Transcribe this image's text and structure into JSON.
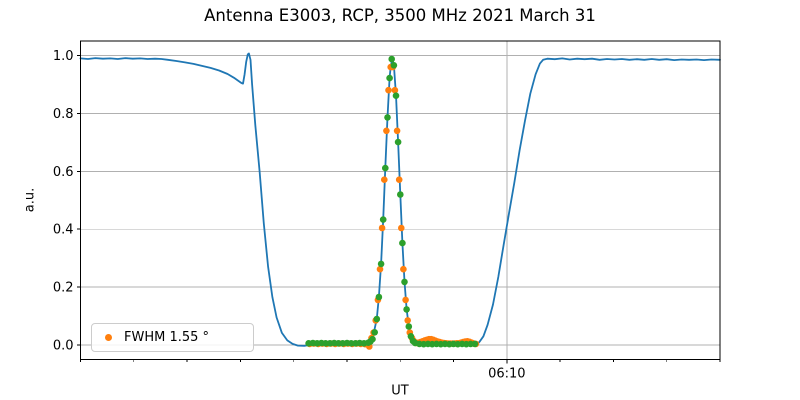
{
  "title": "Antenna E3003, RCP, 3500 MHz 2021 March 31",
  "legend": {
    "label": "FWHM 1.55 °"
  },
  "colors": {
    "line": "#1f77b4",
    "scan": "#ff7f0e",
    "fit": "#2ca02c"
  },
  "axes": {
    "ylabel": "a.u.",
    "xlabel": "UT",
    "ytick_labels": [
      "0.0",
      "0.2",
      "0.4",
      "0.6",
      "0.8",
      "1.0"
    ],
    "ytick_values": [
      0.0,
      0.2,
      0.4,
      0.6,
      0.8,
      1.0
    ],
    "x_major_tick": {
      "minutes": 40,
      "label": "06:10"
    },
    "x_minor_step_minutes": 5,
    "grid_color": "#b0b0b0",
    "frame_color": "#000000"
  },
  "chart_data": {
    "type": "line",
    "title": "Antenna E3003, RCP, 3500 MHz 2021 March 31",
    "xlabel": "UT",
    "ylabel": "a.u.",
    "x_unit": "minutes after 05:30 UT",
    "xlim": [
      0,
      60
    ],
    "ylim": [
      -0.05,
      1.05
    ],
    "grid": true,
    "legend_position": "lower left",
    "series": [
      {
        "name": "drift-scan-line",
        "type": "line",
        "color": "#1f77b4",
        "points": [
          [
            0,
            0.99
          ],
          [
            0.7,
            0.988
          ],
          [
            1.4,
            0.991
          ],
          [
            2.1,
            0.989
          ],
          [
            2.8,
            0.99
          ],
          [
            3.5,
            0.988
          ],
          [
            4.2,
            0.991
          ],
          [
            4.9,
            0.989
          ],
          [
            5.6,
            0.99
          ],
          [
            6.3,
            0.988
          ],
          [
            7,
            0.989
          ],
          [
            7.6,
            0.988
          ],
          [
            8.2,
            0.985
          ],
          [
            9,
            0.981
          ],
          [
            9.8,
            0.976
          ],
          [
            10.6,
            0.971
          ],
          [
            11.4,
            0.964
          ],
          [
            12.2,
            0.957
          ],
          [
            13,
            0.948
          ],
          [
            13.8,
            0.936
          ],
          [
            14.4,
            0.923
          ],
          [
            14.8,
            0.913
          ],
          [
            15.1,
            0.905
          ],
          [
            15.25,
            0.903
          ],
          [
            15.4,
            0.935
          ],
          [
            15.55,
            0.978
          ],
          [
            15.7,
            1.004
          ],
          [
            15.8,
            1.007
          ],
          [
            15.95,
            0.985
          ],
          [
            16.1,
            0.9
          ],
          [
            16.4,
            0.76
          ],
          [
            16.8,
            0.6
          ],
          [
            17.2,
            0.42
          ],
          [
            17.6,
            0.27
          ],
          [
            18,
            0.165
          ],
          [
            18.4,
            0.095
          ],
          [
            18.9,
            0.042
          ],
          [
            19.4,
            0.016
          ],
          [
            19.9,
            0.004
          ],
          [
            20.4,
            -0.002
          ],
          [
            21,
            -0.003
          ],
          [
            21.6,
            0.001
          ],
          [
            22.4,
            0.002
          ],
          [
            23.2,
            0.003
          ],
          [
            24,
            0.002
          ],
          [
            25,
            0.003
          ],
          [
            26,
            0.003
          ],
          [
            26.6,
            0.004
          ],
          [
            27,
            0.006
          ],
          [
            27.4,
            0.021
          ],
          [
            27.8,
            0.091
          ],
          [
            28,
            0.167
          ],
          [
            28.2,
            0.281
          ],
          [
            28.4,
            0.434
          ],
          [
            28.6,
            0.612
          ],
          [
            28.8,
            0.787
          ],
          [
            29,
            0.923
          ],
          [
            29.1,
            0.962
          ],
          [
            29.25,
            0.99
          ],
          [
            29.4,
            0.966
          ],
          [
            29.6,
            0.862
          ],
          [
            29.8,
            0.702
          ],
          [
            30,
            0.521
          ],
          [
            30.2,
            0.353
          ],
          [
            30.4,
            0.219
          ],
          [
            30.6,
            0.124
          ],
          [
            30.8,
            0.065
          ],
          [
            31,
            0.031
          ],
          [
            31.3,
            0.011
          ],
          [
            31.6,
            0.005
          ],
          [
            32.2,
            0.004
          ],
          [
            33,
            0.005
          ],
          [
            33.8,
            0.004
          ],
          [
            34.6,
            0.004
          ],
          [
            35.4,
            0.005
          ],
          [
            36.2,
            0.004
          ],
          [
            37,
            0.005
          ],
          [
            37.4,
            0.009
          ],
          [
            37.8,
            0.03
          ],
          [
            38.2,
            0.07
          ],
          [
            38.7,
            0.14
          ],
          [
            39.2,
            0.235
          ],
          [
            39.7,
            0.345
          ],
          [
            40.2,
            0.455
          ],
          [
            40.7,
            0.56
          ],
          [
            41.2,
            0.672
          ],
          [
            41.7,
            0.775
          ],
          [
            42.2,
            0.868
          ],
          [
            42.7,
            0.935
          ],
          [
            43.1,
            0.972
          ],
          [
            43.4,
            0.985
          ],
          [
            43.8,
            0.989
          ],
          [
            44.5,
            0.987
          ],
          [
            45.2,
            0.99
          ],
          [
            45.9,
            0.986
          ],
          [
            46.6,
            0.989
          ],
          [
            47.3,
            0.987
          ],
          [
            48,
            0.989
          ],
          [
            48.7,
            0.985
          ],
          [
            49.4,
            0.988
          ],
          [
            50.1,
            0.986
          ],
          [
            50.8,
            0.988
          ],
          [
            51.5,
            0.985
          ],
          [
            52.2,
            0.987
          ],
          [
            52.9,
            0.985
          ],
          [
            53.6,
            0.988
          ],
          [
            54.3,
            0.985
          ],
          [
            55,
            0.987
          ],
          [
            55.7,
            0.984
          ],
          [
            56.4,
            0.986
          ],
          [
            57.1,
            0.985
          ],
          [
            57.8,
            0.986
          ],
          [
            58.5,
            0.984
          ],
          [
            59.2,
            0.986
          ],
          [
            60,
            0.985
          ]
        ]
      },
      {
        "name": "fwhm-scan-points",
        "type": "scatter",
        "color": "#ff7f0e",
        "legend_label": "FWHM 1.55 °",
        "points": [
          [
            21.5,
            0.004
          ],
          [
            21.9,
            0.005
          ],
          [
            22.3,
            0.004
          ],
          [
            22.7,
            0.005
          ],
          [
            23.1,
            0.004
          ],
          [
            23.5,
            0.005
          ],
          [
            23.9,
            0.004
          ],
          [
            24.3,
            0.005
          ],
          [
            24.7,
            0.004
          ],
          [
            25.1,
            0.005
          ],
          [
            25.5,
            0.004
          ],
          [
            25.9,
            0.005
          ],
          [
            26.3,
            0.004
          ],
          [
            26.7,
            0.003
          ],
          [
            27.1,
            -0.005
          ],
          [
            27.3,
            0.024
          ],
          [
            27.5,
            0.043
          ],
          [
            27.7,
            0.085
          ],
          [
            27.9,
            0.156
          ],
          [
            28.1,
            0.262
          ],
          [
            28.3,
            0.404
          ],
          [
            28.5,
            0.571
          ],
          [
            28.7,
            0.74
          ],
          [
            28.9,
            0.88
          ],
          [
            29.1,
            0.96
          ],
          [
            29.3,
            0.96
          ],
          [
            29.5,
            0.88
          ],
          [
            29.7,
            0.74
          ],
          [
            29.9,
            0.571
          ],
          [
            30.1,
            0.404
          ],
          [
            30.3,
            0.262
          ],
          [
            30.5,
            0.156
          ],
          [
            30.7,
            0.085
          ],
          [
            30.9,
            0.043
          ],
          [
            31.1,
            0.024
          ],
          [
            31.3,
            0.013
          ],
          [
            31.5,
            0.007
          ],
          [
            31.7,
            0.008
          ],
          [
            31.9,
            0.01
          ],
          [
            32.1,
            0.013
          ],
          [
            32.3,
            0.016
          ],
          [
            32.5,
            0.018
          ],
          [
            32.7,
            0.02
          ],
          [
            32.9,
            0.02
          ],
          [
            33.1,
            0.018
          ],
          [
            33.3,
            0.015
          ],
          [
            33.5,
            0.012
          ],
          [
            33.7,
            0.01
          ],
          [
            33.9,
            0.008
          ],
          [
            34.1,
            0.007
          ],
          [
            34.3,
            0.006
          ],
          [
            34.5,
            0.005
          ],
          [
            34.7,
            0.005
          ],
          [
            34.9,
            0.005
          ],
          [
            35.1,
            0.005
          ],
          [
            35.3,
            0.006
          ],
          [
            35.5,
            0.006
          ],
          [
            35.7,
            0.008
          ],
          [
            35.9,
            0.01
          ],
          [
            36.1,
            0.012
          ],
          [
            36.3,
            0.013
          ],
          [
            36.5,
            0.011
          ],
          [
            36.7,
            0.008
          ],
          [
            36.9,
            0.005
          ],
          [
            37.1,
            0.004
          ]
        ]
      },
      {
        "name": "gaussian-fit-points",
        "type": "scatter",
        "color": "#2ca02c",
        "points": [
          [
            21.4,
            0.006
          ],
          [
            21.8,
            0.007
          ],
          [
            22.2,
            0.006
          ],
          [
            22.6,
            0.007
          ],
          [
            23,
            0.006
          ],
          [
            23.4,
            0.006
          ],
          [
            23.8,
            0.007
          ],
          [
            24.2,
            0.006
          ],
          [
            24.6,
            0.006
          ],
          [
            25,
            0.007
          ],
          [
            25.4,
            0.006
          ],
          [
            25.8,
            0.006
          ],
          [
            26.2,
            0.007
          ],
          [
            26.6,
            0.006
          ],
          [
            27,
            0.008
          ],
          [
            27.2,
            0.012
          ],
          [
            27.4,
            0.02
          ],
          [
            27.6,
            0.044
          ],
          [
            27.8,
            0.09
          ],
          [
            28,
            0.166
          ],
          [
            28.2,
            0.28
          ],
          [
            28.4,
            0.433
          ],
          [
            28.6,
            0.611
          ],
          [
            28.8,
            0.786
          ],
          [
            29,
            0.922
          ],
          [
            29.2,
            0.988
          ],
          [
            29.4,
            0.966
          ],
          [
            29.6,
            0.861
          ],
          [
            29.8,
            0.701
          ],
          [
            30,
            0.52
          ],
          [
            30.2,
            0.352
          ],
          [
            30.4,
            0.218
          ],
          [
            30.6,
            0.123
          ],
          [
            30.8,
            0.064
          ],
          [
            31,
            0.03
          ],
          [
            31.2,
            0.014
          ],
          [
            31.4,
            0.007
          ],
          [
            31.8,
            0.004
          ],
          [
            32.2,
            0.003
          ],
          [
            32.6,
            0.004
          ],
          [
            33,
            0.003
          ],
          [
            33.4,
            0.004
          ],
          [
            33.8,
            0.003
          ],
          [
            34.2,
            0.004
          ],
          [
            34.6,
            0.003
          ],
          [
            35,
            0.004
          ],
          [
            35.4,
            0.003
          ],
          [
            35.8,
            0.004
          ],
          [
            36.2,
            0.003
          ],
          [
            36.6,
            0.004
          ],
          [
            37,
            0.004
          ]
        ]
      }
    ]
  }
}
